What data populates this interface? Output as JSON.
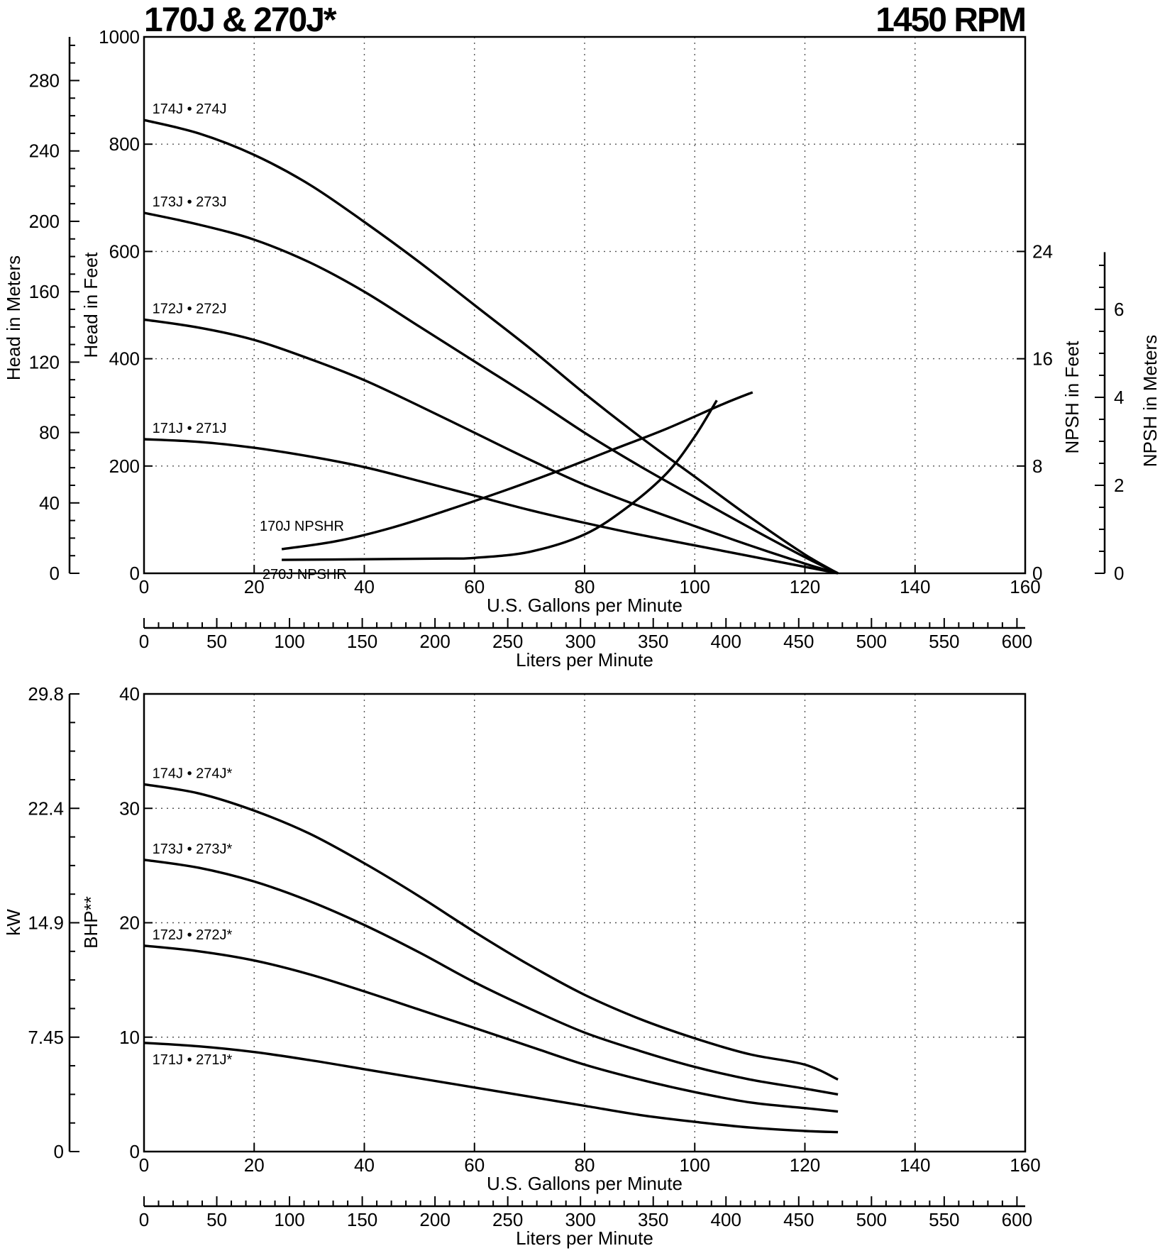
{
  "title_left": "170J & 270J*",
  "title_right": "1450 RPM",
  "chart_data": [
    {
      "type": "line",
      "title": "",
      "xlabel": "U.S. Gallons per Minute",
      "xlim": [
        0,
        160
      ],
      "x_ticks": [
        0,
        20,
        40,
        60,
        80,
        100,
        120,
        140,
        160
      ],
      "ylabel": "Head in Feet",
      "ylim": [
        0,
        1000
      ],
      "y_ticks": [
        0,
        200,
        400,
        600,
        800,
        1000
      ],
      "grid": true,
      "secondary_axes": {
        "head_meters": {
          "label": "Head in Meters",
          "ticks": [
            0,
            40,
            80,
            120,
            160,
            200,
            240,
            280
          ]
        },
        "npsh_feet": {
          "label": "NPSH in Feet",
          "ticks": [
            0,
            8,
            16,
            24
          ],
          "range": [
            0,
            24
          ]
        },
        "npsh_meters": {
          "label": "NPSH in Meters",
          "ticks": [
            0,
            2,
            4,
            6
          ],
          "range": [
            0,
            7.3
          ]
        },
        "liters_per_minute": {
          "label": "Liters per Minute",
          "ticks": [
            0,
            50,
            100,
            150,
            200,
            250,
            300,
            350,
            400,
            450,
            500,
            550,
            600
          ]
        }
      },
      "series": [
        {
          "name": "174J • 274J",
          "x": [
            0,
            10,
            20,
            30,
            40,
            50,
            60,
            70,
            80,
            90,
            100,
            110,
            120,
            126
          ],
          "y": [
            845,
            820,
            780,
            725,
            655,
            580,
            500,
            420,
            335,
            255,
            180,
            105,
            35,
            0
          ]
        },
        {
          "name": "173J • 273J",
          "x": [
            0,
            10,
            20,
            30,
            40,
            50,
            60,
            70,
            80,
            90,
            100,
            110,
            120,
            126
          ],
          "y": [
            672,
            650,
            622,
            580,
            525,
            460,
            395,
            330,
            262,
            200,
            142,
            85,
            30,
            0
          ]
        },
        {
          "name": "172J • 272J",
          "x": [
            0,
            10,
            20,
            30,
            40,
            50,
            60,
            70,
            80,
            90,
            100,
            110,
            120,
            126
          ],
          "y": [
            473,
            458,
            435,
            400,
            360,
            312,
            262,
            212,
            165,
            125,
            88,
            52,
            18,
            0
          ]
        },
        {
          "name": "171J • 271J",
          "x": [
            0,
            10,
            20,
            30,
            40,
            50,
            60,
            70,
            80,
            90,
            100,
            110,
            120,
            126
          ],
          "y": [
            250,
            245,
            234,
            218,
            198,
            172,
            145,
            118,
            94,
            72,
            52,
            32,
            12,
            0
          ]
        },
        {
          "name": "170J NPSHR",
          "axis": "npsh_feet",
          "x": [
            25,
            35,
            45,
            55,
            65,
            75,
            85,
            95,
            105,
            110.5
          ],
          "y": [
            1.8,
            2.4,
            3.4,
            4.7,
            6.1,
            7.6,
            9.2,
            10.8,
            12.6,
            13.5
          ]
        },
        {
          "name": "270J NPSHR",
          "axis": "npsh_feet",
          "x": [
            25,
            40,
            55,
            60,
            70,
            80,
            88,
            95,
            100,
            104
          ],
          "y": [
            1.0,
            1.05,
            1.1,
            1.15,
            1.6,
            2.9,
            5.0,
            7.5,
            10.2,
            12.9
          ]
        }
      ]
    },
    {
      "type": "line",
      "title": "",
      "xlabel": "U.S. Gallons per Minute",
      "xlim": [
        0,
        160
      ],
      "x_ticks": [
        0,
        20,
        40,
        60,
        80,
        100,
        120,
        140,
        160
      ],
      "ylabel": "BHP**",
      "ylim": [
        0,
        40
      ],
      "y_ticks": [
        0,
        10,
        20,
        30,
        40
      ],
      "grid": true,
      "secondary_axes": {
        "kw": {
          "label": "kW",
          "tick_labels": [
            "0",
            "7.45",
            "14.9",
            "22.4",
            "29.8"
          ]
        },
        "liters_per_minute": {
          "label": "Liters per Minute",
          "ticks": [
            0,
            50,
            100,
            150,
            200,
            250,
            300,
            350,
            400,
            450,
            500,
            550,
            600
          ]
        }
      },
      "series": [
        {
          "name": "174J • 274J*",
          "x": [
            0,
            10,
            20,
            30,
            40,
            50,
            60,
            70,
            80,
            90,
            100,
            110,
            120,
            126
          ],
          "y": [
            32.1,
            31.3,
            29.8,
            27.8,
            25.2,
            22.3,
            19.2,
            16.3,
            13.7,
            11.6,
            9.9,
            8.5,
            7.6,
            6.3
          ]
        },
        {
          "name": "173J • 273J*",
          "x": [
            0,
            10,
            20,
            30,
            40,
            50,
            60,
            70,
            80,
            90,
            100,
            110,
            120,
            126
          ],
          "y": [
            25.5,
            24.8,
            23.6,
            21.9,
            19.8,
            17.4,
            14.8,
            12.5,
            10.4,
            8.8,
            7.4,
            6.3,
            5.5,
            5.0
          ]
        },
        {
          "name": "172J • 272J*",
          "x": [
            0,
            10,
            20,
            30,
            40,
            50,
            60,
            70,
            80,
            90,
            100,
            110,
            120,
            126
          ],
          "y": [
            18.0,
            17.5,
            16.7,
            15.5,
            14.0,
            12.4,
            10.8,
            9.2,
            7.6,
            6.3,
            5.2,
            4.3,
            3.8,
            3.5
          ]
        },
        {
          "name": "171J • 271J*",
          "x": [
            0,
            10,
            20,
            30,
            40,
            50,
            60,
            70,
            80,
            90,
            100,
            110,
            120,
            126
          ],
          "y": [
            9.5,
            9.2,
            8.7,
            8.0,
            7.2,
            6.4,
            5.6,
            4.8,
            4.0,
            3.2,
            2.6,
            2.1,
            1.8,
            1.7
          ]
        }
      ]
    }
  ]
}
